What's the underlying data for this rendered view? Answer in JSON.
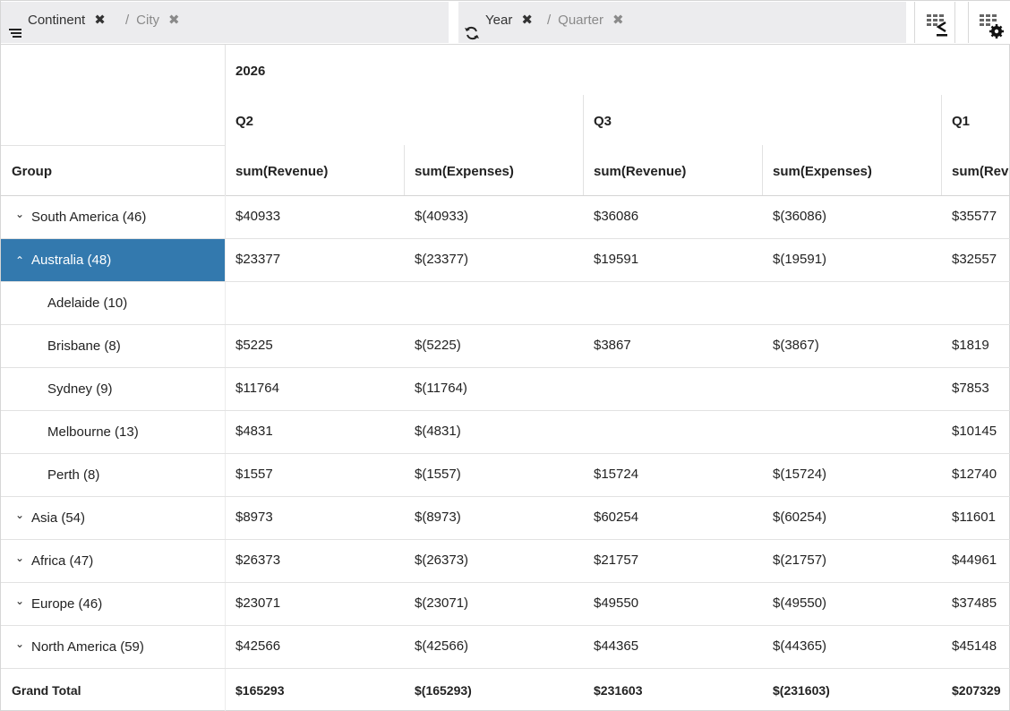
{
  "toolbar": {
    "rows_groups": [
      "Continent",
      "City"
    ],
    "cols_groups": [
      "Year",
      "Quarter"
    ],
    "separator": "/"
  },
  "header": {
    "group_label": "Group",
    "year": "2026",
    "quarters": [
      "Q2",
      "Q3",
      "Q1"
    ],
    "measures": [
      "sum(Revenue)",
      "sum(Expenses)",
      "sum(Revenue)",
      "sum(Expenses)",
      "sum(Rev"
    ]
  },
  "rows": [
    {
      "label": "South America (46)",
      "expand": "collapsed",
      "values": [
        "$40933",
        "$(40933)",
        "$36086",
        "$(36086)",
        "$35577"
      ]
    },
    {
      "label": "Australia (48)",
      "expand": "expanded",
      "selected": true,
      "values": [
        "$23377",
        "$(23377)",
        "$19591",
        "$(19591)",
        "$32557"
      ]
    },
    {
      "label": "Adelaide (10)",
      "child": true,
      "values": [
        "",
        "",
        "",
        "",
        ""
      ]
    },
    {
      "label": "Brisbane (8)",
      "child": true,
      "values": [
        "$5225",
        "$(5225)",
        "$3867",
        "$(3867)",
        "$1819"
      ]
    },
    {
      "label": "Sydney (9)",
      "child": true,
      "values": [
        "$11764",
        "$(11764)",
        "",
        "",
        "$7853"
      ]
    },
    {
      "label": "Melbourne (13)",
      "child": true,
      "values": [
        "$4831",
        "$(4831)",
        "",
        "",
        "$10145"
      ]
    },
    {
      "label": "Perth (8)",
      "child": true,
      "values": [
        "$1557",
        "$(1557)",
        "$15724",
        "$(15724)",
        "$12740"
      ]
    },
    {
      "label": "Asia (54)",
      "expand": "collapsed",
      "values": [
        "$8973",
        "$(8973)",
        "$60254",
        "$(60254)",
        "$11601"
      ]
    },
    {
      "label": "Africa (47)",
      "expand": "collapsed",
      "values": [
        "$26373",
        "$(26373)",
        "$21757",
        "$(21757)",
        "$44961"
      ]
    },
    {
      "label": "Europe (46)",
      "expand": "collapsed",
      "values": [
        "$23071",
        "$(23071)",
        "$49550",
        "$(49550)",
        "$37485"
      ]
    },
    {
      "label": "North America (59)",
      "expand": "collapsed",
      "values": [
        "$42566",
        "$(42566)",
        "$44365",
        "$(44365)",
        "$45148"
      ]
    }
  ],
  "grand_total": {
    "label": "Grand Total",
    "values": [
      "$165293",
      "$(165293)",
      "$231603",
      "$(231603)",
      "$207329"
    ]
  },
  "colors": {
    "selected_bg": "#3379ae",
    "panel_bg": "#ececee",
    "grid_line": "#e2e2e2"
  }
}
